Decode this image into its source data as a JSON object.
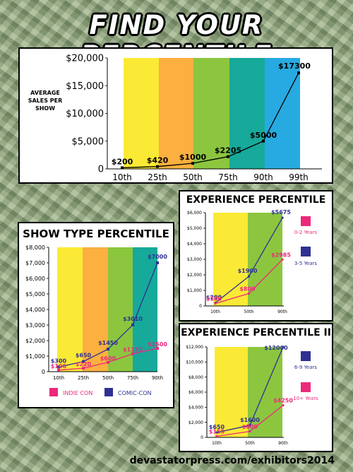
{
  "title": "FIND YOUR PERCENTILE",
  "footer": "devastatorpress.com/exhibitors2014",
  "colors": {
    "band_yellow": "#fbea35",
    "band_orange": "#fbb040",
    "band_green": "#8cc63f",
    "band_teal": "#17a99a",
    "band_blue": "#27aae1",
    "line_black": "#000000",
    "navy": "#2e3192",
    "magenta": "#ec297b"
  },
  "chart_data": [
    {
      "id": "avg",
      "type": "line",
      "title": "",
      "ylabel": "AVERAGE SALES PER SHOW",
      "categories": [
        "10th",
        "25th",
        "50th",
        "75th",
        "90th",
        "99th"
      ],
      "ylim": [
        0,
        20000
      ],
      "yticks": [
        "0",
        "$5,000",
        "$10,000",
        "$15,000",
        "$20,000"
      ],
      "series": [
        {
          "values": [
            200,
            420,
            1000,
            2205,
            5000,
            17300
          ],
          "labels": [
            "$200",
            "$420",
            "$1000",
            "$2205",
            "$5000",
            "$17300"
          ],
          "color": "#000000"
        }
      ]
    },
    {
      "id": "show",
      "type": "line",
      "title": "SHOW TYPE PERCENTILE",
      "categories": [
        "10th",
        "25th",
        "50th",
        "75th",
        "90th"
      ],
      "ylim": [
        0,
        8000
      ],
      "yticks": [
        "0",
        "$1,000",
        "$2,000",
        "$3,000",
        "$4,000",
        "$5,000",
        "$6,000",
        "$7,000",
        "$8,000"
      ],
      "legend": [
        "INDIE CON",
        "COMIC-CON"
      ],
      "series": [
        {
          "name": "COMIC-CON",
          "values": [
            300,
            650,
            1450,
            3010,
            7000
          ],
          "labels": [
            "$300",
            "$650",
            "$1450",
            "$3010",
            "$7000"
          ],
          "color": "#2e3192"
        },
        {
          "name": "INDIE CON",
          "values": [
            100,
            220,
            600,
            1150,
            1500
          ],
          "labels": [
            "$100",
            "$220",
            "$600",
            "$1150",
            "$1500"
          ],
          "color": "#ec297b"
        }
      ]
    },
    {
      "id": "exp",
      "type": "line",
      "title": "EXPERIENCE PERCENTILE",
      "categories": [
        "10th",
        "50th",
        "90th"
      ],
      "ylim": [
        0,
        6000
      ],
      "yticks": [
        "0",
        "$1,000",
        "$2,000",
        "$3,000",
        "$4,000",
        "$5,000",
        "$6,000"
      ],
      "legend": [
        "0-2 Years",
        "3-5 Years"
      ],
      "series": [
        {
          "name": "3-5 Years",
          "values": [
            200,
            1900,
            5675
          ],
          "labels": [
            "$200",
            "$1900",
            "$5675"
          ],
          "color": "#2e3192"
        },
        {
          "name": "0-2 Years",
          "values": [
            160,
            800,
            2985
          ],
          "labels": [
            "$160",
            "$800",
            "$2985"
          ],
          "color": "#ec297b"
        }
      ]
    },
    {
      "id": "exp2",
      "type": "line",
      "title": "EXPERIENCE PERCENTILE II",
      "categories": [
        "10th",
        "50th",
        "90th"
      ],
      "ylim": [
        0,
        12000
      ],
      "yticks": [
        "0",
        "$2,000",
        "$4,000",
        "$6,000",
        "$8,000",
        "$10,000",
        "$12,000"
      ],
      "legend": [
        "6-9 Years",
        "10+ Years"
      ],
      "series": [
        {
          "name": "6-9 Years",
          "values": [
            650,
            1600,
            12000
          ],
          "labels": [
            "$650",
            "$1600",
            "$12000"
          ],
          "color": "#2e3192"
        },
        {
          "name": "10+ Years",
          "values": [
            150,
            800,
            4250
          ],
          "labels": [
            "$150",
            "$800",
            "$4250"
          ],
          "color": "#ec297b"
        }
      ]
    }
  ]
}
